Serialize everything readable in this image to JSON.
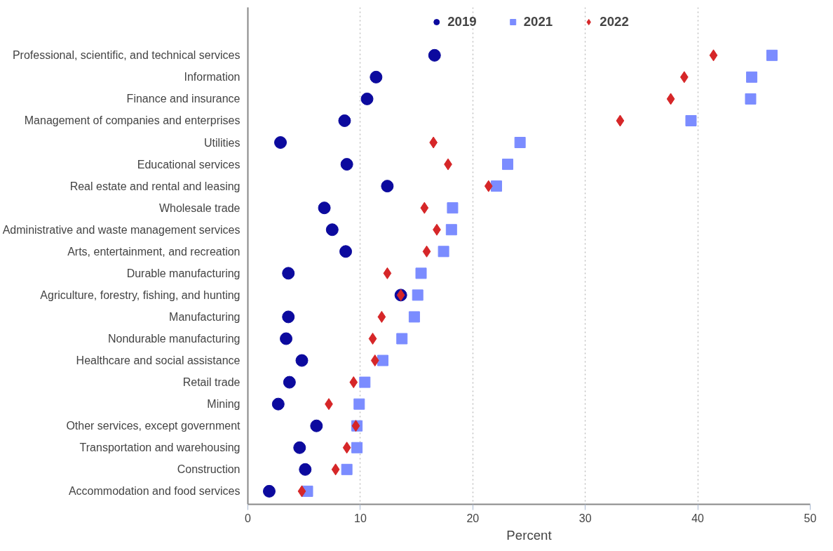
{
  "chart_data": {
    "type": "scatter",
    "xlabel": "Percent",
    "categories": [
      "Professional, scientific, and technical services",
      "Information",
      "Finance and insurance",
      "Management of companies and enterprises",
      "Utilities",
      "Educational services",
      "Real estate and rental and leasing",
      "Wholesale trade",
      "Administrative and waste management services",
      "Arts, entertainment, and recreation",
      "Durable manufacturing",
      "Agriculture, forestry, fishing, and hunting",
      "Manufacturing",
      "Nondurable manufacturing",
      "Healthcare and social assistance",
      "Retail trade",
      "Mining",
      "Other services, except government",
      "Transportation and warehousing",
      "Construction",
      "Accommodation and food services"
    ],
    "orientation": "horizontal",
    "series": [
      {
        "name": "2019",
        "color": "#0c0a9e",
        "marker": "circle",
        "values": [
          16.6,
          11.4,
          10.6,
          8.6,
          2.9,
          8.8,
          12.4,
          6.8,
          7.5,
          8.7,
          3.6,
          13.6,
          3.6,
          3.4,
          4.8,
          3.7,
          2.7,
          6.1,
          4.6,
          5.1,
          1.9
        ]
      },
      {
        "name": "2021",
        "color": "#7b8cff",
        "marker": "square",
        "values": [
          46.6,
          44.8,
          44.7,
          39.4,
          24.2,
          23.1,
          22.1,
          18.2,
          18.1,
          17.4,
          15.4,
          15.1,
          14.8,
          13.7,
          12.0,
          10.4,
          9.9,
          9.7,
          9.7,
          8.8,
          5.3
        ]
      },
      {
        "name": "2022",
        "color": "#d62628",
        "marker": "diamond",
        "values": [
          41.4,
          38.8,
          37.6,
          33.1,
          16.5,
          17.8,
          21.4,
          15.7,
          16.8,
          15.9,
          12.4,
          13.6,
          11.9,
          11.1,
          11.3,
          9.4,
          7.2,
          9.6,
          8.8,
          7.8,
          4.8
        ]
      }
    ],
    "xlim": [
      0,
      50
    ],
    "xticks": [
      0,
      10,
      20,
      30,
      40,
      50
    ],
    "grid": "x",
    "legend": "top"
  }
}
